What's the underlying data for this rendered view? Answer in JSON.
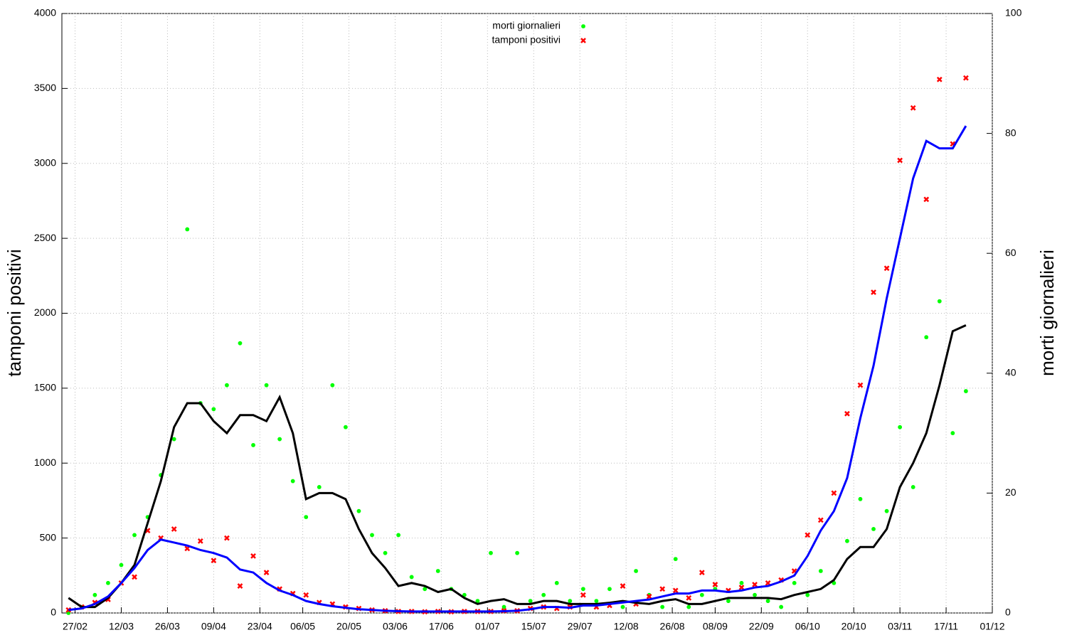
{
  "chart_data": {
    "type": "scatter",
    "y_label": "tamponi positivi",
    "y2_label": "morti giornalieri",
    "x": [
      "25/02",
      "29/02",
      "04/03",
      "08/03",
      "12/03",
      "16/03",
      "20/03",
      "24/03",
      "28/03",
      "01/04",
      "05/04",
      "09/04",
      "13/04",
      "17/04",
      "21/04",
      "25/04",
      "29/04",
      "03/05",
      "07/05",
      "11/05",
      "15/05",
      "19/05",
      "23/05",
      "27/05",
      "31/05",
      "04/06",
      "08/06",
      "12/06",
      "16/06",
      "20/06",
      "24/06",
      "28/06",
      "02/07",
      "06/07",
      "10/07",
      "14/07",
      "18/07",
      "22/07",
      "26/07",
      "30/07",
      "03/08",
      "07/08",
      "11/08",
      "15/08",
      "19/08",
      "23/08",
      "27/08",
      "31/08",
      "04/09",
      "08/09",
      "12/09",
      "16/09",
      "20/09",
      "24/09",
      "28/09",
      "02/10",
      "06/10",
      "10/10",
      "14/10",
      "18/10",
      "22/10",
      "26/10",
      "30/10",
      "03/11",
      "07/11",
      "11/11",
      "15/11",
      "19/11",
      "23/11"
    ],
    "series": [
      {
        "name": "morti giornalieri",
        "color": "#00ff00",
        "marker": "dot",
        "axis": "y2",
        "values": [
          0,
          1,
          3,
          5,
          8,
          13,
          16,
          23,
          29,
          64,
          35,
          34,
          38,
          45,
          28,
          38,
          29,
          22,
          16,
          21,
          38,
          31,
          17,
          13,
          10,
          13,
          6,
          4,
          7,
          4,
          3,
          2,
          10,
          1,
          10,
          2,
          3,
          5,
          2,
          4,
          2,
          4,
          1,
          7,
          3,
          1,
          9,
          1,
          3,
          4,
          2,
          5,
          3,
          2,
          1,
          5,
          3,
          7,
          5,
          12,
          19,
          14,
          17,
          31,
          21,
          46,
          52,
          30,
          37
        ]
      },
      {
        "name": "tamponi positivi",
        "color": "#ff0000",
        "marker": "cross",
        "values": [
          20,
          40,
          70,
          90,
          200,
          240,
          550,
          500,
          560,
          430,
          480,
          350,
          500,
          180,
          380,
          270,
          160,
          130,
          120,
          70,
          60,
          40,
          30,
          20,
          15,
          10,
          10,
          8,
          10,
          8,
          10,
          10,
          10,
          15,
          15,
          30,
          40,
          30,
          40,
          120,
          40,
          50,
          180,
          60,
          110,
          160,
          150,
          100,
          270,
          190,
          150,
          170,
          190,
          200,
          220,
          280,
          520,
          620,
          800,
          1330,
          1520,
          2140,
          2300,
          3020,
          3370,
          2760,
          3560,
          3130,
          3570
        ]
      },
      {
        "color": "#000000",
        "marker": "line",
        "axis": "y2",
        "values": [
          2.5,
          1,
          1,
          2.5,
          5,
          8,
          15,
          22,
          31,
          35,
          35,
          32,
          30,
          33,
          33,
          32,
          36,
          30,
          19,
          20,
          20,
          19,
          14,
          10,
          7.5,
          4.5,
          5,
          4.5,
          3.5,
          4,
          2.5,
          1.5,
          2,
          2.3,
          1.5,
          1.5,
          2,
          2,
          1.5,
          1.5,
          1.5,
          1.7,
          2,
          1.7,
          1.5,
          2,
          2.3,
          1.5,
          1.5,
          2,
          2.5,
          2.5,
          2.5,
          2.5,
          2.3,
          3,
          3.5,
          4,
          5.5,
          9,
          11,
          11,
          14,
          21,
          25,
          30,
          38,
          47,
          48
        ]
      },
      {
        "color": "#0000ff",
        "marker": "line",
        "values": [
          20,
          30,
          60,
          110,
          200,
          300,
          420,
          490,
          470,
          450,
          420,
          400,
          370,
          290,
          270,
          200,
          150,
          120,
          80,
          60,
          45,
          35,
          25,
          20,
          15,
          12,
          10,
          10,
          10,
          10,
          10,
          10,
          10,
          12,
          15,
          25,
          40,
          40,
          35,
          50,
          50,
          60,
          70,
          80,
          90,
          110,
          130,
          130,
          150,
          150,
          140,
          150,
          170,
          180,
          210,
          250,
          380,
          550,
          680,
          900,
          1300,
          1650,
          2100,
          2500,
          2900,
          3150,
          3100,
          3100,
          3250
        ]
      }
    ],
    "xlim": [
      "23/02",
      "01/12"
    ],
    "xticks": [
      "27/02",
      "12/03",
      "26/03",
      "09/04",
      "23/04",
      "06/05",
      "20/05",
      "03/06",
      "17/06",
      "01/07",
      "15/07",
      "29/07",
      "12/08",
      "26/08",
      "08/09",
      "22/09",
      "06/10",
      "20/10",
      "03/11",
      "17/11",
      "01/12"
    ],
    "ylim": [
      0,
      4000
    ],
    "yticks": [
      0,
      500,
      1000,
      1500,
      2000,
      2500,
      3000,
      3500,
      4000
    ],
    "y2lim": [
      0,
      100
    ],
    "y2ticks": [
      0,
      20,
      40,
      60,
      80,
      100
    ],
    "grid": true,
    "legend": "top"
  }
}
